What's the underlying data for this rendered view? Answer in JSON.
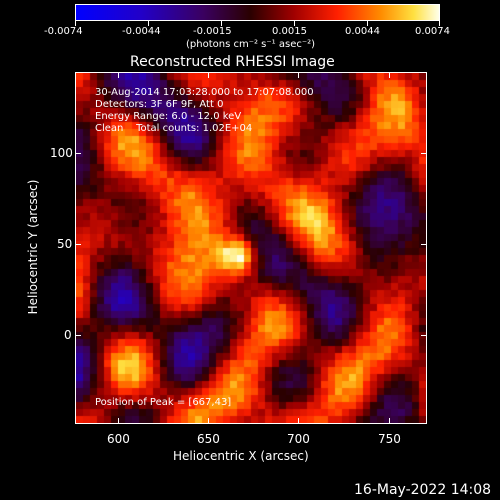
{
  "colorbar": {
    "tick_labels": [
      "-0.0074",
      "-0.0044",
      "-0.0015",
      "0.0015",
      "0.0044",
      "0.0074"
    ],
    "units_label": "(photons cm⁻² s⁻¹ asec⁻²)"
  },
  "plot": {
    "title": "Reconstructed RHESSI Image",
    "info_lines": [
      "30-Aug-2014 17:03:28.000 to 17:07:08.000",
      "Detectors: 3F 6F 9F, Att 0",
      "Energy Range: 6.0 - 12.0 keV",
      "Clean    Total counts: 1.02E+04"
    ],
    "peak_label": "Position of Peak = [667,43]",
    "x_axis": {
      "label": "Heliocentric X (arcsec)",
      "ticks": [
        "600",
        "650",
        "700",
        "750"
      ],
      "range": [
        580,
        770
      ]
    },
    "y_axis": {
      "label": "Heliocentric Y (arcsec)",
      "ticks": [
        "100",
        "50",
        "0"
      ],
      "range": [
        -50,
        140
      ]
    },
    "peak": {
      "x": 667,
      "y": 43
    }
  },
  "footer": {
    "timestamp": "16-May-2022 14:08"
  },
  "colors": {
    "background": "#000000",
    "text": "#ffffff"
  }
}
